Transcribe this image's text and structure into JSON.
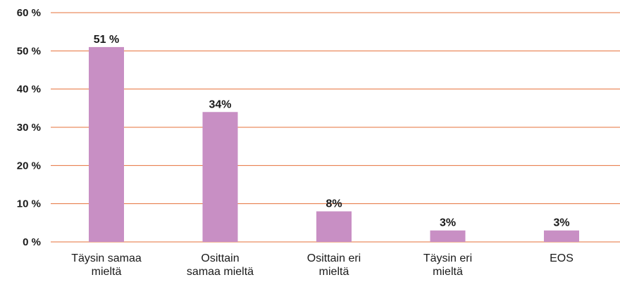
{
  "chart_data": {
    "type": "bar",
    "categories": [
      [
        "Täysin samaa",
        "mieltä"
      ],
      [
        "Osittain",
        "samaa mieltä"
      ],
      [
        "Osittain eri",
        "mieltä"
      ],
      [
        "Täysin eri",
        "mieltä"
      ],
      [
        "EOS"
      ]
    ],
    "values": [
      51,
      34,
      8,
      3,
      3
    ],
    "data_labels": [
      "51 %",
      "34%",
      "8%",
      "3%",
      "3%"
    ],
    "y_ticks": [
      0,
      10,
      20,
      30,
      40,
      50,
      60
    ],
    "y_tick_labels": [
      "0 %",
      "10 %",
      "20 %",
      "30 %",
      "40 %",
      "50 %",
      "60 %"
    ],
    "ylim": [
      0,
      60
    ],
    "title": "",
    "xlabel": "",
    "ylabel": "",
    "grid": true,
    "colors": {
      "bar": "#c88fc4",
      "grid": "#e6713a"
    }
  }
}
